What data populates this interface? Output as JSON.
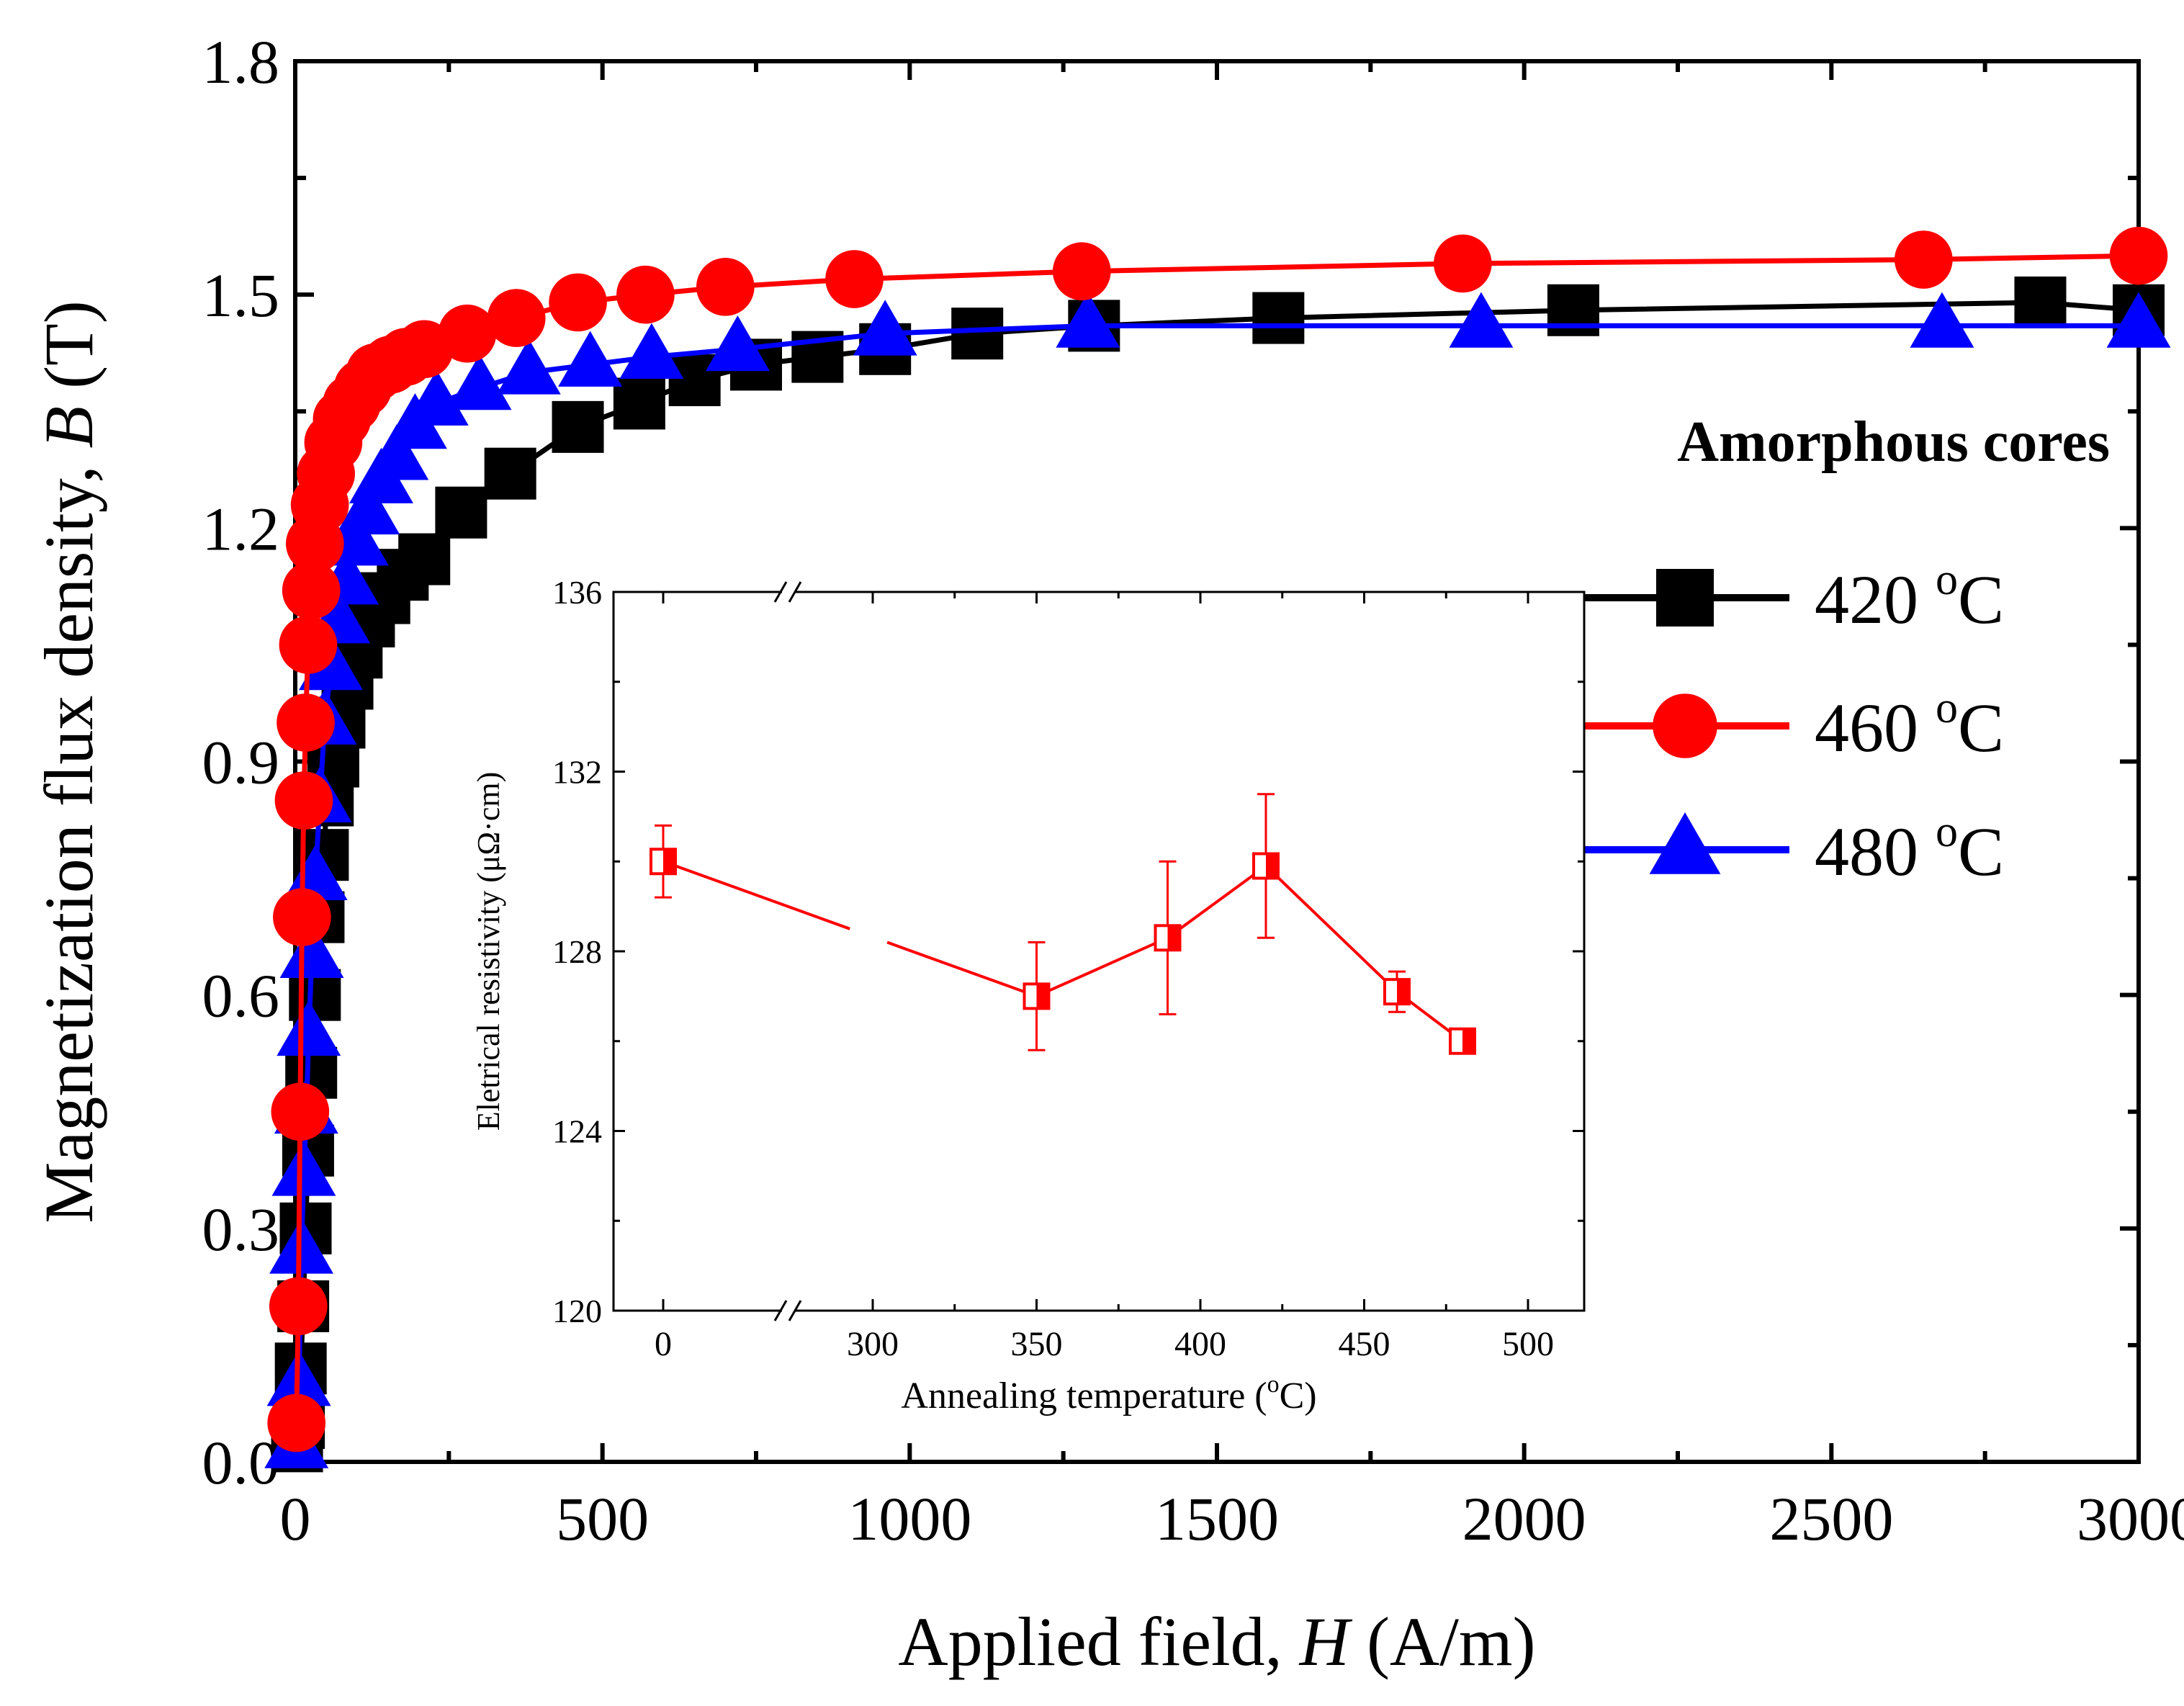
{
  "chart_data": [
    {
      "type": "line",
      "xlabel_prefix": "Applied field, ",
      "xlabel_var": "H",
      "xlabel_suffix": " (A/m)",
      "ylabel_prefix": "Magnetization flux density, ",
      "ylabel_var": "B",
      "ylabel_suffix": " (T)",
      "xlim": [
        0,
        3000
      ],
      "ylim": [
        0,
        1.8
      ],
      "x_ticks": [
        "0",
        "500",
        "1000",
        "1500",
        "2000",
        "2500",
        "3000"
      ],
      "y_ticks": [
        "0.0",
        "0.3",
        "0.6",
        "0.9",
        "1.2",
        "1.5",
        "1.8"
      ],
      "legend_title": "Amorphous cores",
      "legend_position": "right",
      "grid": false,
      "series": [
        {
          "name": "420 °C",
          "label_num": "420 ",
          "label_sup": "o",
          "label_unit": "C",
          "color": "#000000",
          "marker": "square",
          "points": [
            [
              3,
              0.02
            ],
            [
              6,
              0.05
            ],
            [
              9,
              0.12
            ],
            [
              13,
              0.2
            ],
            [
              17,
              0.3
            ],
            [
              21,
              0.4
            ],
            [
              26,
              0.5
            ],
            [
              32,
              0.6
            ],
            [
              38,
              0.7
            ],
            [
              45,
              0.78
            ],
            [
              53,
              0.85
            ],
            [
              62,
              0.9
            ],
            [
              72,
              0.95
            ],
            [
              85,
              1.0
            ],
            [
              100,
              1.04
            ],
            [
              120,
              1.08
            ],
            [
              145,
              1.11
            ],
            [
              175,
              1.14
            ],
            [
              210,
              1.16
            ],
            [
              270,
              1.22
            ],
            [
              350,
              1.27
            ],
            [
              460,
              1.33
            ],
            [
              560,
              1.36
            ],
            [
              650,
              1.39
            ],
            [
              750,
              1.41
            ],
            [
              850,
              1.42
            ],
            [
              960,
              1.43
            ],
            [
              1110,
              1.45
            ],
            [
              1300,
              1.46
            ],
            [
              1600,
              1.47
            ],
            [
              2080,
              1.48
            ],
            [
              2840,
              1.49
            ],
            [
              3000,
              1.48
            ]
          ]
        },
        {
          "name": "460 °C",
          "label_num": "460 ",
          "label_sup": "o",
          "label_unit": "C",
          "color": "#ff0000",
          "marker": "circle",
          "points": [
            [
              2,
              0.05
            ],
            [
              5,
              0.2
            ],
            [
              8,
              0.45
            ],
            [
              11,
              0.7
            ],
            [
              14,
              0.85
            ],
            [
              17,
              0.95
            ],
            [
              21,
              1.05
            ],
            [
              26,
              1.12
            ],
            [
              32,
              1.18
            ],
            [
              40,
              1.23
            ],
            [
              50,
              1.27
            ],
            [
              62,
              1.31
            ],
            [
              76,
              1.34
            ],
            [
              92,
              1.36
            ],
            [
              110,
              1.38
            ],
            [
              130,
              1.4
            ],
            [
              155,
              1.41
            ],
            [
              180,
              1.42
            ],
            [
              210,
              1.43
            ],
            [
              280,
              1.45
            ],
            [
              360,
              1.47
            ],
            [
              460,
              1.49
            ],
            [
              570,
              1.5
            ],
            [
              700,
              1.51
            ],
            [
              910,
              1.52
            ],
            [
              1280,
              1.53
            ],
            [
              1900,
              1.54
            ],
            [
              2650,
              1.545
            ],
            [
              3000,
              1.55
            ]
          ]
        },
        {
          "name": "480 °C",
          "label_num": "480 ",
          "label_sup": "o",
          "label_unit": "C",
          "color": "#0000ff",
          "marker": "triangle",
          "points": [
            [
              2,
              0.02
            ],
            [
              6,
              0.1
            ],
            [
              10,
              0.27
            ],
            [
              14,
              0.37
            ],
            [
              18,
              0.45
            ],
            [
              22,
              0.55
            ],
            [
              27,
              0.65
            ],
            [
              33,
              0.75
            ],
            [
              40,
              0.85
            ],
            [
              48,
              0.95
            ],
            [
              58,
              1.02
            ],
            [
              70,
              1.08
            ],
            [
              84,
              1.13
            ],
            [
              100,
              1.18
            ],
            [
              118,
              1.22
            ],
            [
              140,
              1.26
            ],
            [
              165,
              1.29
            ],
            [
              195,
              1.33
            ],
            [
              230,
              1.36
            ],
            [
              300,
              1.38
            ],
            [
              380,
              1.4
            ],
            [
              480,
              1.41
            ],
            [
              580,
              1.42
            ],
            [
              720,
              1.43
            ],
            [
              960,
              1.45
            ],
            [
              1290,
              1.46
            ],
            [
              1930,
              1.46
            ],
            [
              2680,
              1.46
            ],
            [
              3000,
              1.46
            ]
          ]
        }
      ]
    },
    {
      "type": "line",
      "xlabel_prefix": "Annealing temperature (",
      "xlabel_sup": "o",
      "xlabel_suffix": "C)",
      "ylabel": "Eletrical resistivity (μΩ·cm)",
      "xlim": [
        -30,
        510
      ],
      "ylim": [
        120,
        136
      ],
      "x_ticks": [
        "0",
        "300",
        "350",
        "400",
        "450",
        "500"
      ],
      "y_ticks": [
        "120",
        "124",
        "128",
        "132",
        "136"
      ],
      "axis_break": true,
      "series": [
        {
          "color": "#ff0000",
          "marker": "half-filled-square",
          "points": [
            [
              0,
              130.0
            ],
            [
              350,
              127.0
            ],
            [
              390,
              128.3
            ],
            [
              420,
              129.9
            ],
            [
              460,
              127.1
            ],
            [
              480,
              126.0
            ]
          ],
          "errors": [
            0.8,
            1.2,
            1.7,
            1.6,
            0.45,
            0.15
          ]
        }
      ]
    }
  ]
}
